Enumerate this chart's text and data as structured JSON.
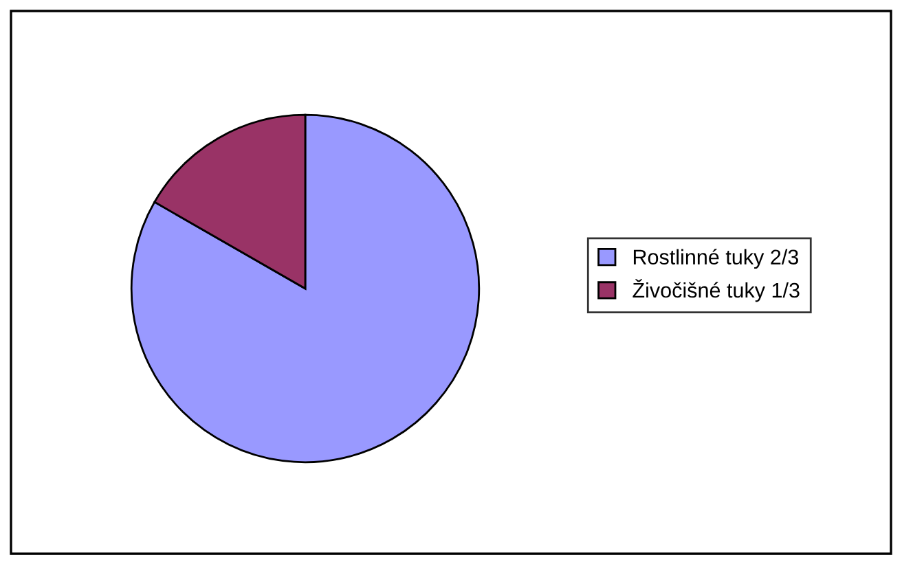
{
  "chart_data": {
    "type": "pie",
    "categories": [
      "Rostlinné tuky 2/3",
      "Živočišné tuky 1/3"
    ],
    "values": [
      83.3,
      16.7
    ],
    "colors": [
      "#9999ff",
      "#993366"
    ],
    "legend": "right"
  }
}
